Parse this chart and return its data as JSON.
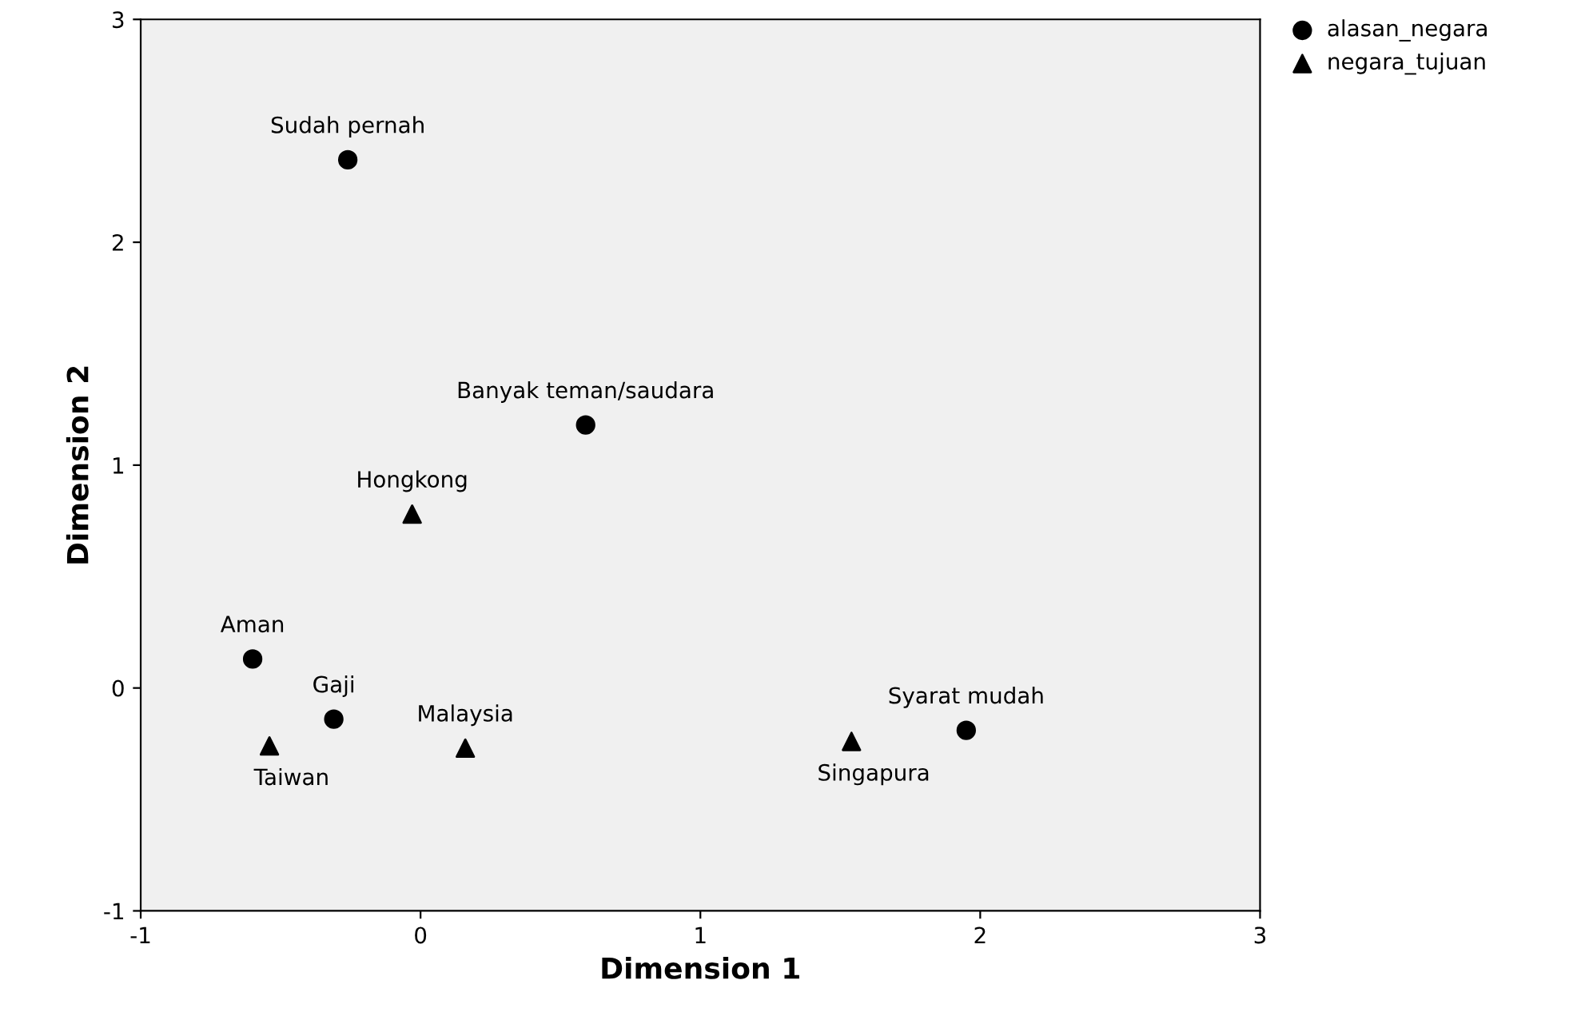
{
  "chart_data": {
    "type": "scatter",
    "xlabel": "Dimension 1",
    "ylabel": "Dimension 2",
    "xlim": [
      -1,
      3
    ],
    "ylim": [
      -1,
      3
    ],
    "xticks": [
      -1,
      0,
      1,
      2,
      3
    ],
    "yticks": [
      -1,
      0,
      1,
      2,
      3
    ],
    "grid": false,
    "legend": "top right",
    "series": [
      {
        "name": "alasan_negara",
        "color": "#000000",
        "marker": "circle",
        "x": [
          -0.26,
          0.59,
          -0.6,
          -0.31,
          1.95
        ],
        "values": [
          2.37,
          1.18,
          0.13,
          -0.14,
          -0.19
        ]
      },
      {
        "name": "negara_tujuan",
        "color": "#000000",
        "marker": "triangle",
        "x": [
          -0.03,
          -0.54,
          0.16,
          1.54
        ],
        "values": [
          0.78,
          -0.26,
          -0.27,
          -0.24
        ]
      }
    ],
    "annotations": [
      {
        "text": "Sudah pernah",
        "x": -0.26,
        "y": 2.37
      },
      {
        "text": "Banyak teman/saudara",
        "x": 0.59,
        "y": 1.18
      },
      {
        "text": "Aman",
        "x": -0.6,
        "y": 0.13
      },
      {
        "text": "Gaji",
        "x": -0.31,
        "y": -0.14
      },
      {
        "text": "Syarat mudah",
        "x": 1.95,
        "y": -0.19
      },
      {
        "text": "Hongkong",
        "x": -0.03,
        "y": 0.78
      },
      {
        "text": "Taiwan",
        "x": -0.54,
        "y": -0.26
      },
      {
        "text": "Malaysia",
        "x": 0.16,
        "y": -0.27
      },
      {
        "text": "Singapura",
        "x": 1.54,
        "y": -0.24
      }
    ]
  }
}
